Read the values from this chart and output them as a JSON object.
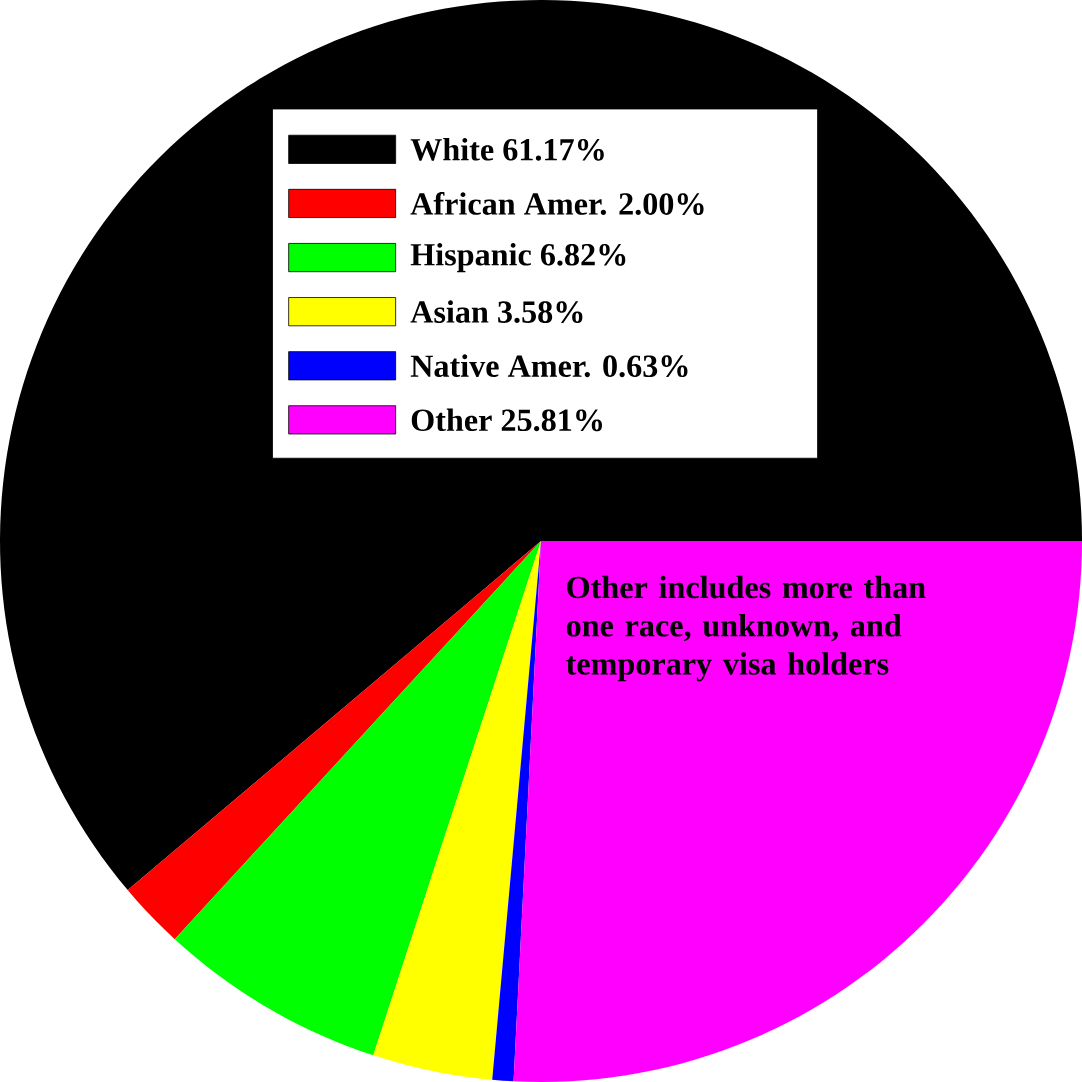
{
  "chart_data": {
    "type": "pie",
    "categories": [
      "White",
      "African Amer.",
      "Hispanic",
      "Asian",
      "Native Amer.",
      "Other"
    ],
    "values": [
      61.17,
      2.0,
      6.82,
      3.58,
      0.63,
      25.81
    ],
    "value_labels": [
      "61.17%",
      "2.00%",
      "6.82%",
      "3.58%",
      "0.63%",
      "25.81%"
    ],
    "colors": [
      "#000000",
      "#ff0000",
      "#00ff00",
      "#ffff00",
      "#0000ff",
      "#ff00ff"
    ],
    "legend": "top",
    "annotations": [
      "Other includes more than one race, unknown, and temporary visa holders"
    ]
  }
}
